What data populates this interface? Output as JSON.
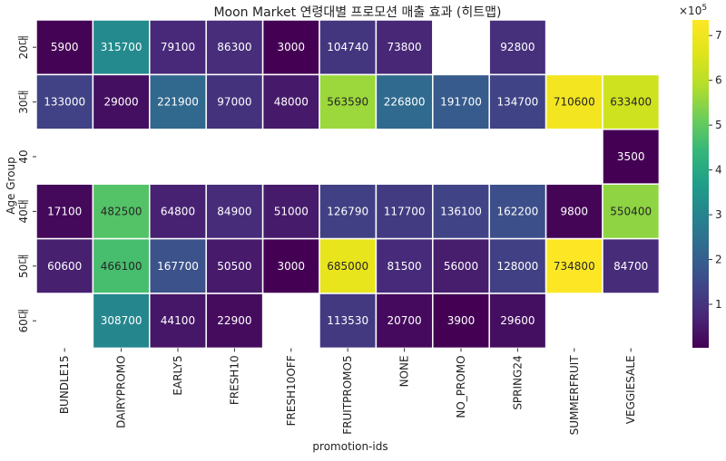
{
  "chart_data": {
    "type": "heatmap",
    "title": "Moon Market 연령대별 프로모션 매출 효과 (히트맵)",
    "xlabel": "promotion-ids",
    "ylabel": "Age Group",
    "x_categories": [
      "BUNDLE15",
      "DAIRYPROMO",
      "EARLY5",
      "FRESH10",
      "FRESH10OFF",
      "FRUITPROMO5",
      "NONE",
      "NO_PROMO",
      "SPRING24",
      "SUMMERFRUIT",
      "VEGGIESALE"
    ],
    "y_categories": [
      "20대",
      "30대",
      "40",
      "40대",
      "50대",
      "60대"
    ],
    "values": [
      [
        5900,
        315700,
        79100,
        86300,
        3000,
        104740,
        73800,
        null,
        92800,
        null,
        null
      ],
      [
        133000,
        29000,
        221900,
        97000,
        48000,
        563590,
        226800,
        191700,
        134700,
        710600,
        633400
      ],
      [
        null,
        null,
        null,
        null,
        null,
        null,
        null,
        null,
        null,
        null,
        3500
      ],
      [
        17100,
        482500,
        64800,
        84900,
        51000,
        126790,
        117700,
        136100,
        162200,
        9800,
        550400
      ],
      [
        60600,
        466100,
        167700,
        50500,
        3000,
        685000,
        81500,
        56000,
        128000,
        734800,
        84700
      ],
      [
        null,
        308700,
        44100,
        22900,
        null,
        113530,
        20700,
        3900,
        29600,
        null,
        null
      ]
    ],
    "colormap": "viridis",
    "colorbar": {
      "ticks": [
        1,
        2,
        3,
        4,
        5,
        6,
        7
      ],
      "multiplier_label": "×10",
      "multiplier_exponent": "5",
      "vmin": 3000,
      "vmax": 734800
    },
    "grid": false
  }
}
